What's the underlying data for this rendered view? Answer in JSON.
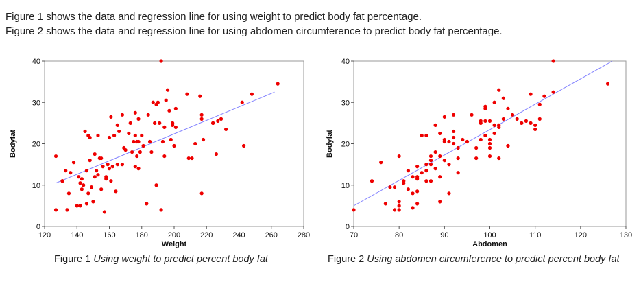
{
  "intro": {
    "line1": "Figure 1 shows the data and regression line for using weight to predict body fat percentage.",
    "line2": "Figure 2 shows the data and regression line for using abdomen circumference to predict body fat percentage."
  },
  "captions": [
    {
      "label": "Figure 1",
      "title": "Using weight to predict percent body fat"
    },
    {
      "label": "Figure 2",
      "title": "Using abdomen circumference to predict percent body fat"
    }
  ],
  "colors": {
    "points": "#ee0000",
    "regression_line": "#8080ff",
    "frame": "#9a9a9a"
  },
  "chart_data": [
    {
      "type": "scatter",
      "title": "",
      "xlabel": "Weight",
      "ylabel": "Bodyfat",
      "xlim": [
        120,
        280
      ],
      "ylim": [
        0,
        40
      ],
      "xticks": [
        120,
        140,
        160,
        180,
        200,
        220,
        240,
        260,
        280
      ],
      "yticks": [
        0,
        10,
        20,
        30,
        40
      ],
      "grid": false,
      "regression_line": [
        [
          127,
          10.5
        ],
        [
          262,
          32.5
        ]
      ],
      "points": [
        [
          127,
          17
        ],
        [
          127,
          4
        ],
        [
          131,
          11
        ],
        [
          131,
          11
        ],
        [
          133,
          13.5
        ],
        [
          134,
          4
        ],
        [
          135,
          8
        ],
        [
          136,
          13
        ],
        [
          138,
          15.5
        ],
        [
          140,
          5
        ],
        [
          141,
          12
        ],
        [
          142,
          5
        ],
        [
          142,
          10.5
        ],
        [
          143,
          11.5
        ],
        [
          143,
          9
        ],
        [
          144,
          10
        ],
        [
          145,
          23
        ],
        [
          146,
          5.5
        ],
        [
          146,
          13.5
        ],
        [
          147,
          22
        ],
        [
          147,
          8
        ],
        [
          148,
          21.5
        ],
        [
          148,
          16
        ],
        [
          149,
          9.5
        ],
        [
          149,
          9.5
        ],
        [
          150,
          6
        ],
        [
          151,
          12
        ],
        [
          151,
          17.5
        ],
        [
          152,
          13.5
        ],
        [
          153,
          12.5
        ],
        [
          153,
          22
        ],
        [
          154,
          16.5
        ],
        [
          155,
          9
        ],
        [
          155,
          16.5
        ],
        [
          156,
          14.5
        ],
        [
          157,
          3.5
        ],
        [
          158,
          12
        ],
        [
          158,
          11.5
        ],
        [
          159,
          15
        ],
        [
          160,
          21.5
        ],
        [
          160,
          14
        ],
        [
          161,
          26.5
        ],
        [
          161,
          11
        ],
        [
          162,
          14.5
        ],
        [
          163,
          22
        ],
        [
          164,
          8.5
        ],
        [
          165,
          15
        ],
        [
          165,
          24.5
        ],
        [
          166,
          23
        ],
        [
          168,
          15
        ],
        [
          168,
          27
        ],
        [
          169,
          19
        ],
        [
          170,
          18.5
        ],
        [
          172,
          22.5
        ],
        [
          173,
          25
        ],
        [
          174,
          18
        ],
        [
          175,
          20.5
        ],
        [
          176,
          14.5
        ],
        [
          176,
          27.5
        ],
        [
          176,
          22
        ],
        [
          177,
          17
        ],
        [
          177,
          20.5
        ],
        [
          178,
          26
        ],
        [
          178,
          14
        ],
        [
          178,
          20.5
        ],
        [
          179,
          18
        ],
        [
          180,
          22
        ],
        [
          181,
          19.5
        ],
        [
          183,
          5.5
        ],
        [
          184,
          27
        ],
        [
          185,
          20.5
        ],
        [
          186,
          18
        ],
        [
          187,
          30
        ],
        [
          188,
          25
        ],
        [
          189,
          10
        ],
        [
          189,
          29.5
        ],
        [
          190,
          30
        ],
        [
          191,
          25
        ],
        [
          192,
          4
        ],
        [
          192,
          40
        ],
        [
          193,
          20.5
        ],
        [
          194,
          24
        ],
        [
          194,
          17
        ],
        [
          195,
          30.5
        ],
        [
          196,
          33
        ],
        [
          197,
          28
        ],
        [
          198,
          21
        ],
        [
          199,
          25
        ],
        [
          199,
          24.5
        ],
        [
          200,
          19.5
        ],
        [
          201,
          28.5
        ],
        [
          201,
          24
        ],
        [
          208,
          32
        ],
        [
          209,
          16.5
        ],
        [
          211,
          16.5
        ],
        [
          213,
          20
        ],
        [
          216,
          31.5
        ],
        [
          217,
          8
        ],
        [
          217,
          26
        ],
        [
          217,
          27
        ],
        [
          218,
          21
        ],
        [
          224,
          25
        ],
        [
          224,
          25
        ],
        [
          226,
          17.5
        ],
        [
          227,
          25.5
        ],
        [
          229,
          26
        ],
        [
          232,
          23.5
        ],
        [
          242,
          30
        ],
        [
          243,
          19.5
        ],
        [
          248,
          32
        ],
        [
          264,
          34.5
        ]
      ]
    },
    {
      "type": "scatter",
      "title": "",
      "xlabel": "Abdomen",
      "ylabel": "Bodyfat",
      "xlim": [
        70,
        130
      ],
      "ylim": [
        0,
        40
      ],
      "xticks": [
        70,
        80,
        90,
        100,
        110,
        120,
        130
      ],
      "yticks": [
        0,
        10,
        20,
        30,
        40
      ],
      "grid": false,
      "regression_line": [
        [
          70,
          5
        ],
        [
          127,
          40
        ]
      ],
      "points": [
        [
          70,
          4
        ],
        [
          74,
          11
        ],
        [
          76,
          15.5
        ],
        [
          77,
          5.5
        ],
        [
          78,
          9.5
        ],
        [
          79,
          4
        ],
        [
          79,
          9.5
        ],
        [
          80,
          5
        ],
        [
          80,
          6
        ],
        [
          80,
          4
        ],
        [
          80,
          17
        ],
        [
          81,
          11
        ],
        [
          81,
          10.5
        ],
        [
          82,
          13.5
        ],
        [
          82,
          9
        ],
        [
          83,
          8
        ],
        [
          83,
          12
        ],
        [
          83,
          4.5
        ],
        [
          84,
          5.5
        ],
        [
          84,
          8.5
        ],
        [
          84,
          12
        ],
        [
          84,
          11.5
        ],
        [
          84,
          14.5
        ],
        [
          85,
          13
        ],
        [
          85,
          22
        ],
        [
          86,
          11
        ],
        [
          86,
          13.5
        ],
        [
          86,
          15
        ],
        [
          86,
          22
        ],
        [
          87,
          17
        ],
        [
          87,
          16
        ],
        [
          87,
          11
        ],
        [
          87,
          15
        ],
        [
          88,
          24.5
        ],
        [
          88,
          18
        ],
        [
          88,
          14
        ],
        [
          89,
          22.5
        ],
        [
          89,
          17
        ],
        [
          89,
          12
        ],
        [
          89,
          6
        ],
        [
          90,
          21
        ],
        [
          90,
          26.5
        ],
        [
          90,
          20.5
        ],
        [
          90,
          16
        ],
        [
          91,
          20.5
        ],
        [
          91,
          15
        ],
        [
          91,
          8
        ],
        [
          92,
          21.5
        ],
        [
          92,
          23
        ],
        [
          92,
          20
        ],
        [
          92,
          27
        ],
        [
          93,
          19
        ],
        [
          93,
          16.5
        ],
        [
          93,
          13
        ],
        [
          94,
          21
        ],
        [
          95,
          20.5
        ],
        [
          96,
          27
        ],
        [
          97,
          19
        ],
        [
          97,
          16.5
        ],
        [
          98,
          25.5
        ],
        [
          98,
          21
        ],
        [
          98,
          25
        ],
        [
          99,
          25.5
        ],
        [
          99,
          29
        ],
        [
          99,
          28.5
        ],
        [
          99,
          22
        ],
        [
          100,
          21
        ],
        [
          100,
          25.5
        ],
        [
          100,
          20
        ],
        [
          100,
          19
        ],
        [
          100,
          17
        ],
        [
          101,
          30
        ],
        [
          101,
          24.5
        ],
        [
          101,
          22.5
        ],
        [
          102,
          24.5
        ],
        [
          102,
          24
        ],
        [
          102,
          16.5
        ],
        [
          102,
          33
        ],
        [
          103,
          31
        ],
        [
          103,
          26
        ],
        [
          104,
          28.5
        ],
        [
          104,
          19.5
        ],
        [
          104,
          19.5
        ],
        [
          105,
          27
        ],
        [
          106,
          26
        ],
        [
          107,
          25
        ],
        [
          108,
          25.5
        ],
        [
          109,
          25
        ],
        [
          109,
          32
        ],
        [
          110,
          24.5
        ],
        [
          110,
          23.5
        ],
        [
          111,
          26
        ],
        [
          111,
          29.5
        ],
        [
          112,
          31.5
        ],
        [
          114,
          40
        ],
        [
          114,
          32.5
        ],
        [
          126,
          34.5
        ]
      ]
    }
  ]
}
